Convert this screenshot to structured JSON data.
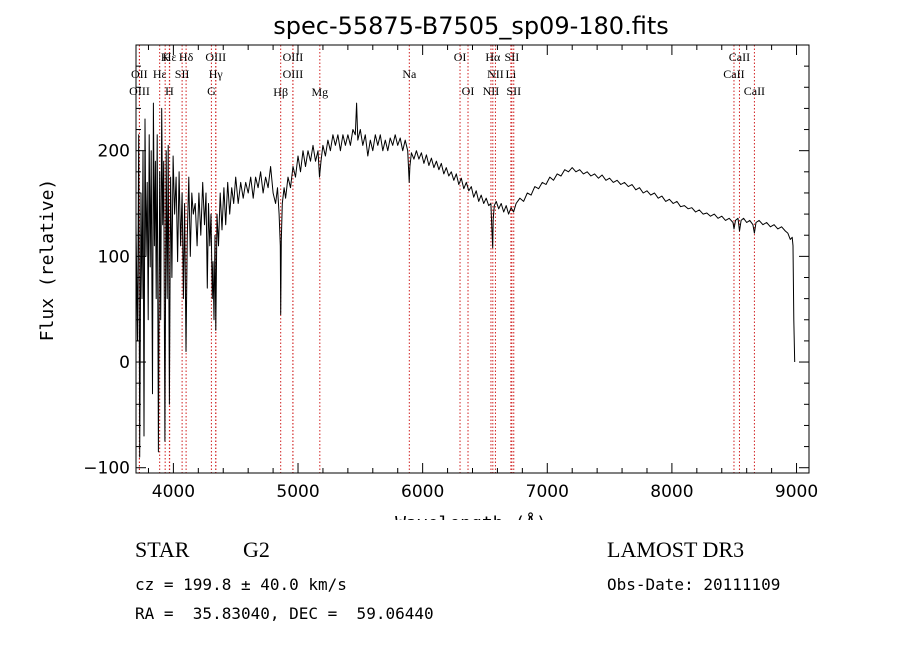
{
  "chart_data": {
    "type": "line",
    "title": "spec-55875-B7505_sp09-180.fits",
    "xlabel": "Wavelength (Å)",
    "ylabel": "Flux (relative)",
    "xlim": [
      3700,
      9100
    ],
    "ylim": [
      -105,
      300
    ],
    "xticks": [
      4000,
      5000,
      6000,
      7000,
      8000,
      9000
    ],
    "yticks": [
      -100,
      0,
      100,
      200
    ],
    "grid": false,
    "line_color": "#000000",
    "marker_color": "#d02020",
    "series": [
      {
        "name": "flux",
        "points": [
          [
            3700,
            130
          ],
          [
            3712,
            20
          ],
          [
            3722,
            215
          ],
          [
            3730,
            -90
          ],
          [
            3740,
            160
          ],
          [
            3748,
            60
          ],
          [
            3756,
            200
          ],
          [
            3764,
            -70
          ],
          [
            3772,
            230
          ],
          [
            3780,
            100
          ],
          [
            3790,
            170
          ],
          [
            3798,
            40
          ],
          [
            3806,
            215
          ],
          [
            3814,
            90
          ],
          [
            3822,
            200
          ],
          [
            3832,
            -30
          ],
          [
            3840,
            245
          ],
          [
            3848,
            110
          ],
          [
            3856,
            190
          ],
          [
            3862,
            60
          ],
          [
            3870,
            215
          ],
          [
            3880,
            -85
          ],
          [
            3890,
            180
          ],
          [
            3898,
            40
          ],
          [
            3906,
            240
          ],
          [
            3914,
            130
          ],
          [
            3922,
            190
          ],
          [
            3932,
            -75
          ],
          [
            3942,
            200
          ],
          [
            3950,
            60
          ],
          [
            3958,
            205
          ],
          [
            3968,
            -40
          ],
          [
            3978,
            175
          ],
          [
            3988,
            80
          ],
          [
            3998,
            195
          ],
          [
            4010,
            140
          ],
          [
            4022,
            175
          ],
          [
            4034,
            95
          ],
          [
            4046,
            180
          ],
          [
            4058,
            110
          ],
          [
            4070,
            160
          ],
          [
            4080,
            60
          ],
          [
            4090,
            150
          ],
          [
            4101,
            10
          ],
          [
            4112,
            120
          ],
          [
            4124,
            175
          ],
          [
            4136,
            100
          ],
          [
            4148,
            160
          ],
          [
            4160,
            140
          ],
          [
            4175,
            150
          ],
          [
            4190,
            110
          ],
          [
            4205,
            160
          ],
          [
            4220,
            120
          ],
          [
            4235,
            170
          ],
          [
            4250,
            130
          ],
          [
            4262,
            160
          ],
          [
            4272,
            70
          ],
          [
            4282,
            150
          ],
          [
            4292,
            110
          ],
          [
            4302,
            140
          ],
          [
            4312,
            60
          ],
          [
            4318,
            95
          ],
          [
            4326,
            40
          ],
          [
            4334,
            120
          ],
          [
            4340,
            30
          ],
          [
            4350,
            140
          ],
          [
            4362,
            110
          ],
          [
            4376,
            160
          ],
          [
            4390,
            125
          ],
          [
            4405,
            165
          ],
          [
            4420,
            130
          ],
          [
            4436,
            170
          ],
          [
            4452,
            140
          ],
          [
            4468,
            165
          ],
          [
            4484,
            150
          ],
          [
            4500,
            175
          ],
          [
            4520,
            150
          ],
          [
            4540,
            170
          ],
          [
            4560,
            155
          ],
          [
            4580,
            170
          ],
          [
            4600,
            160
          ],
          [
            4620,
            175
          ],
          [
            4640,
            155
          ],
          [
            4660,
            175
          ],
          [
            4680,
            165
          ],
          [
            4700,
            180
          ],
          [
            4720,
            160
          ],
          [
            4740,
            175
          ],
          [
            4760,
            165
          ],
          [
            4780,
            185
          ],
          [
            4800,
            160
          ],
          [
            4820,
            150
          ],
          [
            4835,
            165
          ],
          [
            4848,
            140
          ],
          [
            4858,
            110
          ],
          [
            4861,
            45
          ],
          [
            4866,
            115
          ],
          [
            4874,
            150
          ],
          [
            4888,
            165
          ],
          [
            4900,
            155
          ],
          [
            4920,
            175
          ],
          [
            4940,
            165
          ],
          [
            4960,
            185
          ],
          [
            4980,
            175
          ],
          [
            5000,
            195
          ],
          [
            5020,
            180
          ],
          [
            5040,
            200
          ],
          [
            5060,
            185
          ],
          [
            5080,
            200
          ],
          [
            5100,
            190
          ],
          [
            5120,
            205
          ],
          [
            5140,
            190
          ],
          [
            5160,
            200
          ],
          [
            5172,
            175
          ],
          [
            5184,
            190
          ],
          [
            5200,
            205
          ],
          [
            5220,
            195
          ],
          [
            5240,
            210
          ],
          [
            5260,
            200
          ],
          [
            5280,
            215
          ],
          [
            5300,
            205
          ],
          [
            5320,
            215
          ],
          [
            5340,
            200
          ],
          [
            5360,
            215
          ],
          [
            5380,
            205
          ],
          [
            5400,
            215
          ],
          [
            5420,
            205
          ],
          [
            5440,
            220
          ],
          [
            5460,
            215
          ],
          [
            5470,
            245
          ],
          [
            5480,
            210
          ],
          [
            5500,
            220
          ],
          [
            5520,
            205
          ],
          [
            5540,
            215
          ],
          [
            5560,
            195
          ],
          [
            5580,
            210
          ],
          [
            5600,
            200
          ],
          [
            5620,
            215
          ],
          [
            5640,
            205
          ],
          [
            5660,
            215
          ],
          [
            5680,
            200
          ],
          [
            5700,
            210
          ],
          [
            5720,
            200
          ],
          [
            5740,
            212
          ],
          [
            5760,
            205
          ],
          [
            5780,
            215
          ],
          [
            5800,
            205
          ],
          [
            5820,
            212
          ],
          [
            5840,
            200
          ],
          [
            5860,
            210
          ],
          [
            5880,
            200
          ],
          [
            5892,
            170
          ],
          [
            5898,
            185
          ],
          [
            5910,
            198
          ],
          [
            5930,
            192
          ],
          [
            5950,
            200
          ],
          [
            5970,
            192
          ],
          [
            5990,
            198
          ],
          [
            6010,
            188
          ],
          [
            6030,
            196
          ],
          [
            6050,
            186
          ],
          [
            6070,
            193
          ],
          [
            6090,
            184
          ],
          [
            6110,
            190
          ],
          [
            6130,
            182
          ],
          [
            6150,
            188
          ],
          [
            6170,
            178
          ],
          [
            6190,
            184
          ],
          [
            6210,
            176
          ],
          [
            6230,
            180
          ],
          [
            6250,
            172
          ],
          [
            6270,
            178
          ],
          [
            6290,
            168
          ],
          [
            6310,
            174
          ],
          [
            6330,
            164
          ],
          [
            6350,
            170
          ],
          [
            6370,
            162
          ],
          [
            6390,
            166
          ],
          [
            6410,
            156
          ],
          [
            6430,
            162
          ],
          [
            6450,
            152
          ],
          [
            6470,
            158
          ],
          [
            6490,
            150
          ],
          [
            6510,
            155
          ],
          [
            6530,
            148
          ],
          [
            6548,
            150
          ],
          [
            6555,
            128
          ],
          [
            6562,
            108
          ],
          [
            6566,
            135
          ],
          [
            6575,
            148
          ],
          [
            6590,
            152
          ],
          [
            6610,
            145
          ],
          [
            6630,
            150
          ],
          [
            6650,
            142
          ],
          [
            6670,
            148
          ],
          [
            6690,
            140
          ],
          [
            6710,
            146
          ],
          [
            6730,
            142
          ],
          [
            6750,
            150
          ],
          [
            6780,
            155
          ],
          [
            6810,
            152
          ],
          [
            6840,
            160
          ],
          [
            6870,
            158
          ],
          [
            6900,
            166
          ],
          [
            6930,
            164
          ],
          [
            6960,
            170
          ],
          [
            6990,
            168
          ],
          [
            7020,
            175
          ],
          [
            7050,
            172
          ],
          [
            7080,
            178
          ],
          [
            7110,
            176
          ],
          [
            7140,
            182
          ],
          [
            7170,
            180
          ],
          [
            7200,
            184
          ],
          [
            7230,
            180
          ],
          [
            7260,
            182
          ],
          [
            7290,
            178
          ],
          [
            7320,
            180
          ],
          [
            7350,
            176
          ],
          [
            7380,
            178
          ],
          [
            7410,
            174
          ],
          [
            7440,
            177
          ],
          [
            7470,
            172
          ],
          [
            7500,
            174
          ],
          [
            7530,
            170
          ],
          [
            7560,
            172
          ],
          [
            7590,
            168
          ],
          [
            7620,
            170
          ],
          [
            7650,
            166
          ],
          [
            7680,
            168
          ],
          [
            7710,
            163
          ],
          [
            7740,
            165
          ],
          [
            7770,
            160
          ],
          [
            7800,
            162
          ],
          [
            7830,
            158
          ],
          [
            7860,
            160
          ],
          [
            7890,
            155
          ],
          [
            7920,
            157
          ],
          [
            7950,
            152
          ],
          [
            7980,
            154
          ],
          [
            8010,
            150
          ],
          [
            8040,
            152
          ],
          [
            8070,
            147
          ],
          [
            8100,
            148
          ],
          [
            8130,
            145
          ],
          [
            8160,
            146
          ],
          [
            8190,
            142
          ],
          [
            8220,
            144
          ],
          [
            8250,
            140
          ],
          [
            8280,
            141
          ],
          [
            8310,
            138
          ],
          [
            8340,
            140
          ],
          [
            8370,
            136
          ],
          [
            8400,
            138
          ],
          [
            8430,
            134
          ],
          [
            8460,
            136
          ],
          [
            8490,
            132
          ],
          [
            8498,
            126
          ],
          [
            8510,
            134
          ],
          [
            8530,
            136
          ],
          [
            8542,
            124
          ],
          [
            8555,
            134
          ],
          [
            8575,
            136
          ],
          [
            8600,
            132
          ],
          [
            8625,
            134
          ],
          [
            8650,
            130
          ],
          [
            8662,
            122
          ],
          [
            8675,
            132
          ],
          [
            8700,
            134
          ],
          [
            8730,
            130
          ],
          [
            8760,
            132
          ],
          [
            8790,
            128
          ],
          [
            8820,
            130
          ],
          [
            8850,
            126
          ],
          [
            8880,
            128
          ],
          [
            8910,
            124
          ],
          [
            8930,
            122
          ],
          [
            8950,
            116
          ],
          [
            8965,
            118
          ],
          [
            8972,
            110
          ],
          [
            8978,
            40
          ],
          [
            8985,
            0
          ]
        ]
      }
    ],
    "lines": [
      {
        "label": "Hε",
        "x": 3970,
        "row": 1
      },
      {
        "label": "K",
        "x": 3934,
        "row": 1
      },
      {
        "label": "Hδ",
        "x": 4102,
        "row": 1
      },
      {
        "label": "OII",
        "x": 3727,
        "row": 2
      },
      {
        "label": "OIII",
        "x": 3728,
        "row": 3
      },
      {
        "label": "Hε",
        "x": 3890,
        "row": 2
      },
      {
        "label": "H",
        "x": 3968,
        "row": 3
      },
      {
        "label": "SII",
        "x": 4070,
        "row": 2
      },
      {
        "label": "OIII",
        "x": 4340,
        "row": 1
      },
      {
        "label": "Hγ",
        "x": 4340,
        "row": 2
      },
      {
        "label": "G",
        "x": 4305,
        "row": 3
      },
      {
        "label": "OIII",
        "x": 4959,
        "row": 1
      },
      {
        "label": "OIII",
        "x": 4959,
        "row": 2
      },
      {
        "label": "Hβ",
        "x": 4861,
        "row": 4
      },
      {
        "label": "Mg",
        "x": 5175,
        "row": 4
      },
      {
        "label": "Na",
        "x": 5893,
        "row": 2
      },
      {
        "label": "OI",
        "x": 6300,
        "row": 1
      },
      {
        "label": "OI",
        "x": 6364,
        "row": 3
      },
      {
        "label": "Hα",
        "x": 6563,
        "row": 1
      },
      {
        "label": "SII",
        "x": 6716,
        "row": 1
      },
      {
        "label": "NII",
        "x": 6584,
        "row": 2
      },
      {
        "label": "Li",
        "x": 6708,
        "row": 2
      },
      {
        "label": "NII",
        "x": 6548,
        "row": 3
      },
      {
        "label": "SII",
        "x": 6731,
        "row": 3
      },
      {
        "label": "CaII",
        "x": 8542,
        "row": 1
      },
      {
        "label": "CaII",
        "x": 8498,
        "row": 2
      },
      {
        "label": "CaII",
        "x": 8662,
        "row": 3
      }
    ]
  },
  "info": {
    "object_class": "STAR",
    "subclass": "G2",
    "survey": "LAMOST DR3",
    "redshift": "cz = 199.8 ± 40.0 km/s",
    "obs_date": "Obs-Date: 20111109",
    "coordinates": "RA =  35.83040, DEC =  59.06440"
  }
}
